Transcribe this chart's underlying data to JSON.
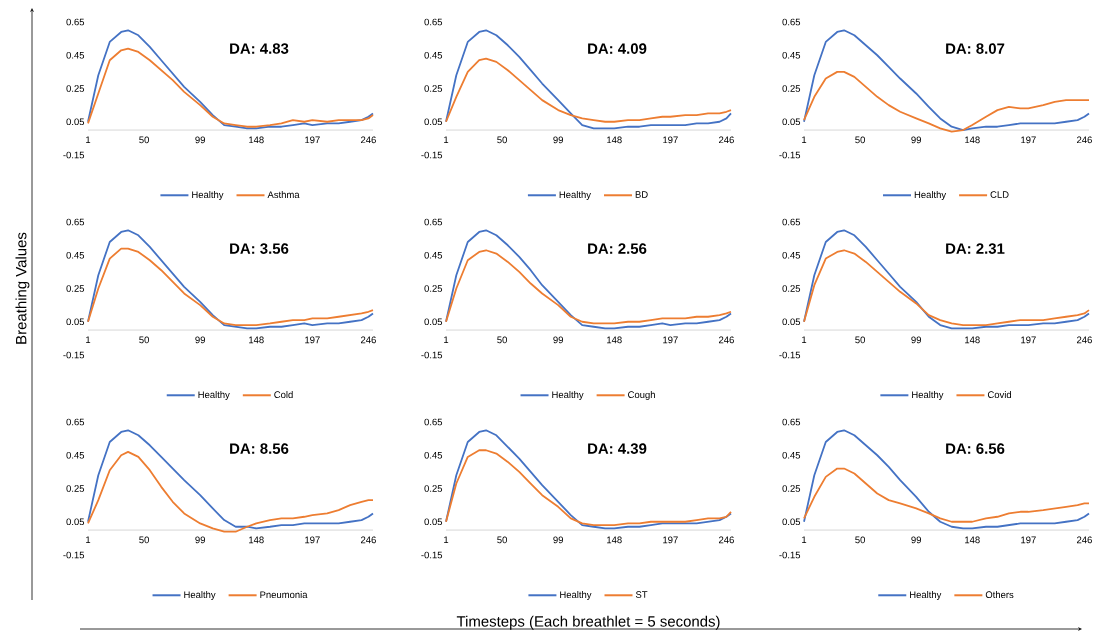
{
  "chart_data": [
    {
      "type": "line",
      "x": [
        1,
        10,
        20,
        30,
        36,
        45,
        55,
        65,
        75,
        85,
        99,
        110,
        120,
        130,
        140,
        148,
        160,
        170,
        180,
        190,
        197,
        210,
        220,
        230,
        240,
        246,
        250
      ],
      "xlim": [
        1,
        250
      ],
      "xticks": [
        1,
        50,
        99,
        148,
        197,
        246
      ],
      "ylim": [
        -0.15,
        0.65
      ],
      "yticks": [
        -0.15,
        0.05,
        0.25,
        0.45,
        0.65
      ],
      "legend": "bottom",
      "annotations": [
        "DA: 4.83"
      ],
      "series": [
        {
          "name": "Healthy",
          "color": "#4472c4",
          "values": [
            0.05,
            0.33,
            0.53,
            0.59,
            0.6,
            0.57,
            0.5,
            0.42,
            0.34,
            0.26,
            0.17,
            0.09,
            0.03,
            0.02,
            0.01,
            0.01,
            0.02,
            0.02,
            0.03,
            0.04,
            0.03,
            0.04,
            0.04,
            0.05,
            0.06,
            0.08,
            0.1
          ]
        },
        {
          "name": "Asthma",
          "color": "#ed7d31",
          "values": [
            0.04,
            0.22,
            0.42,
            0.48,
            0.49,
            0.47,
            0.42,
            0.36,
            0.3,
            0.23,
            0.15,
            0.08,
            0.04,
            0.03,
            0.02,
            0.02,
            0.03,
            0.04,
            0.06,
            0.05,
            0.06,
            0.05,
            0.06,
            0.06,
            0.06,
            0.07,
            0.09
          ]
        }
      ]
    },
    {
      "type": "line",
      "x": [
        1,
        10,
        20,
        30,
        36,
        45,
        55,
        65,
        75,
        85,
        99,
        110,
        120,
        130,
        140,
        148,
        160,
        170,
        180,
        190,
        197,
        210,
        220,
        230,
        240,
        246,
        250
      ],
      "xlim": [
        1,
        250
      ],
      "xticks": [
        1,
        50,
        99,
        148,
        197,
        246
      ],
      "ylim": [
        -0.15,
        0.65
      ],
      "yticks": [
        -0.15,
        0.05,
        0.25,
        0.45,
        0.65
      ],
      "legend": "bottom",
      "annotations": [
        "DA: 4.09"
      ],
      "series": [
        {
          "name": "Healthy",
          "color": "#4472c4",
          "values": [
            0.05,
            0.33,
            0.53,
            0.59,
            0.6,
            0.57,
            0.51,
            0.44,
            0.36,
            0.28,
            0.18,
            0.1,
            0.03,
            0.01,
            0.01,
            0.01,
            0.02,
            0.02,
            0.03,
            0.03,
            0.03,
            0.03,
            0.04,
            0.04,
            0.05,
            0.07,
            0.1
          ]
        },
        {
          "name": "BD",
          "color": "#ed7d31",
          "values": [
            0.05,
            0.2,
            0.35,
            0.42,
            0.43,
            0.41,
            0.36,
            0.3,
            0.24,
            0.18,
            0.12,
            0.09,
            0.07,
            0.06,
            0.05,
            0.05,
            0.06,
            0.06,
            0.07,
            0.08,
            0.08,
            0.09,
            0.09,
            0.1,
            0.1,
            0.11,
            0.12
          ]
        }
      ]
    },
    {
      "type": "line",
      "x": [
        1,
        10,
        20,
        30,
        36,
        45,
        55,
        65,
        75,
        85,
        99,
        110,
        120,
        130,
        140,
        148,
        160,
        170,
        180,
        190,
        197,
        210,
        220,
        230,
        240,
        246,
        250
      ],
      "xlim": [
        1,
        250
      ],
      "xticks": [
        1,
        50,
        99,
        148,
        197,
        246
      ],
      "ylim": [
        -0.15,
        0.65
      ],
      "yticks": [
        -0.15,
        0.05,
        0.25,
        0.45,
        0.65
      ],
      "legend": "bottom",
      "annotations": [
        "DA: 8.07"
      ],
      "series": [
        {
          "name": "Healthy",
          "color": "#4472c4",
          "values": [
            0.05,
            0.33,
            0.53,
            0.59,
            0.6,
            0.57,
            0.51,
            0.45,
            0.38,
            0.31,
            0.22,
            0.14,
            0.07,
            0.02,
            0.0,
            0.01,
            0.02,
            0.02,
            0.03,
            0.04,
            0.04,
            0.04,
            0.04,
            0.05,
            0.06,
            0.08,
            0.1
          ]
        },
        {
          "name": "CLD",
          "color": "#ed7d31",
          "values": [
            0.06,
            0.2,
            0.31,
            0.35,
            0.35,
            0.32,
            0.26,
            0.2,
            0.15,
            0.11,
            0.07,
            0.04,
            0.01,
            -0.01,
            0.0,
            0.03,
            0.08,
            0.12,
            0.14,
            0.13,
            0.13,
            0.15,
            0.17,
            0.18,
            0.18,
            0.18,
            0.18
          ]
        }
      ]
    },
    {
      "type": "line",
      "x": [
        1,
        10,
        20,
        30,
        36,
        45,
        55,
        65,
        75,
        85,
        99,
        110,
        120,
        130,
        140,
        148,
        160,
        170,
        180,
        190,
        197,
        210,
        220,
        230,
        240,
        246,
        250
      ],
      "xlim": [
        1,
        250
      ],
      "xticks": [
        1,
        50,
        99,
        148,
        197,
        246
      ],
      "ylim": [
        -0.15,
        0.65
      ],
      "yticks": [
        -0.15,
        0.05,
        0.25,
        0.45,
        0.65
      ],
      "legend": "bottom",
      "annotations": [
        "DA: 3.56"
      ],
      "ylabel": "Breathing Values",
      "series": [
        {
          "name": "Healthy",
          "color": "#4472c4",
          "values": [
            0.05,
            0.33,
            0.53,
            0.59,
            0.6,
            0.57,
            0.5,
            0.42,
            0.34,
            0.26,
            0.17,
            0.09,
            0.03,
            0.02,
            0.01,
            0.01,
            0.02,
            0.02,
            0.03,
            0.04,
            0.03,
            0.04,
            0.04,
            0.05,
            0.06,
            0.08,
            0.1
          ]
        },
        {
          "name": "Cold",
          "color": "#ed7d31",
          "values": [
            0.05,
            0.25,
            0.43,
            0.49,
            0.49,
            0.47,
            0.42,
            0.36,
            0.29,
            0.22,
            0.15,
            0.08,
            0.04,
            0.03,
            0.03,
            0.03,
            0.04,
            0.05,
            0.06,
            0.06,
            0.07,
            0.07,
            0.08,
            0.09,
            0.1,
            0.11,
            0.12
          ]
        }
      ]
    },
    {
      "type": "line",
      "x": [
        1,
        10,
        20,
        30,
        36,
        45,
        55,
        65,
        75,
        85,
        99,
        110,
        120,
        130,
        140,
        148,
        160,
        170,
        180,
        190,
        197,
        210,
        220,
        230,
        240,
        246,
        250
      ],
      "xlim": [
        1,
        250
      ],
      "xticks": [
        1,
        50,
        99,
        148,
        197,
        246
      ],
      "ylim": [
        -0.15,
        0.65
      ],
      "yticks": [
        -0.15,
        0.05,
        0.25,
        0.45,
        0.65
      ],
      "legend": "bottom",
      "annotations": [
        "DA: 2.56"
      ],
      "series": [
        {
          "name": "Healthy",
          "color": "#4472c4",
          "values": [
            0.05,
            0.33,
            0.53,
            0.59,
            0.6,
            0.57,
            0.51,
            0.44,
            0.36,
            0.27,
            0.17,
            0.09,
            0.03,
            0.02,
            0.01,
            0.01,
            0.02,
            0.02,
            0.03,
            0.04,
            0.03,
            0.04,
            0.04,
            0.05,
            0.06,
            0.08,
            0.1
          ]
        },
        {
          "name": "Cough",
          "color": "#ed7d31",
          "values": [
            0.05,
            0.25,
            0.42,
            0.47,
            0.48,
            0.46,
            0.41,
            0.35,
            0.28,
            0.22,
            0.15,
            0.08,
            0.05,
            0.04,
            0.04,
            0.04,
            0.05,
            0.05,
            0.06,
            0.07,
            0.07,
            0.07,
            0.08,
            0.08,
            0.09,
            0.1,
            0.11
          ]
        }
      ]
    },
    {
      "type": "line",
      "x": [
        1,
        10,
        20,
        30,
        36,
        45,
        55,
        65,
        75,
        85,
        99,
        110,
        120,
        130,
        140,
        148,
        160,
        170,
        180,
        190,
        197,
        210,
        220,
        230,
        240,
        246,
        250
      ],
      "xlim": [
        1,
        250
      ],
      "xticks": [
        1,
        50,
        99,
        148,
        197,
        246
      ],
      "ylim": [
        -0.15,
        0.65
      ],
      "yticks": [
        -0.15,
        0.05,
        0.25,
        0.45,
        0.65
      ],
      "legend": "bottom",
      "annotations": [
        "DA: 2.31"
      ],
      "series": [
        {
          "name": "Healthy",
          "color": "#4472c4",
          "values": [
            0.05,
            0.33,
            0.53,
            0.59,
            0.6,
            0.57,
            0.5,
            0.42,
            0.34,
            0.26,
            0.17,
            0.08,
            0.03,
            0.01,
            0.01,
            0.01,
            0.02,
            0.02,
            0.03,
            0.03,
            0.03,
            0.04,
            0.04,
            0.05,
            0.06,
            0.08,
            0.1
          ]
        },
        {
          "name": "Covid",
          "color": "#ed7d31",
          "values": [
            0.05,
            0.27,
            0.43,
            0.47,
            0.48,
            0.46,
            0.41,
            0.35,
            0.29,
            0.23,
            0.16,
            0.09,
            0.06,
            0.04,
            0.03,
            0.03,
            0.03,
            0.04,
            0.05,
            0.06,
            0.06,
            0.06,
            0.07,
            0.08,
            0.09,
            0.1,
            0.12
          ]
        }
      ]
    },
    {
      "type": "line",
      "x": [
        1,
        10,
        20,
        30,
        36,
        45,
        55,
        65,
        75,
        85,
        99,
        110,
        120,
        130,
        140,
        148,
        160,
        170,
        180,
        190,
        197,
        210,
        220,
        230,
        240,
        246,
        250
      ],
      "xlim": [
        1,
        250
      ],
      "xticks": [
        1,
        50,
        99,
        148,
        197,
        246
      ],
      "ylim": [
        -0.15,
        0.65
      ],
      "yticks": [
        -0.15,
        0.05,
        0.25,
        0.45,
        0.65
      ],
      "legend": "bottom",
      "annotations": [
        "DA: 8.56"
      ],
      "series": [
        {
          "name": "Healthy",
          "color": "#4472c4",
          "values": [
            0.05,
            0.33,
            0.53,
            0.59,
            0.6,
            0.57,
            0.51,
            0.44,
            0.37,
            0.3,
            0.21,
            0.13,
            0.06,
            0.02,
            0.02,
            0.01,
            0.02,
            0.03,
            0.03,
            0.04,
            0.04,
            0.04,
            0.04,
            0.05,
            0.06,
            0.08,
            0.1
          ]
        },
        {
          "name": "Pneumonia",
          "color": "#ed7d31",
          "values": [
            0.04,
            0.18,
            0.36,
            0.45,
            0.47,
            0.44,
            0.36,
            0.26,
            0.17,
            0.1,
            0.04,
            0.01,
            -0.01,
            -0.01,
            0.02,
            0.04,
            0.06,
            0.07,
            0.07,
            0.08,
            0.09,
            0.1,
            0.12,
            0.15,
            0.17,
            0.18,
            0.18
          ]
        }
      ]
    },
    {
      "type": "line",
      "x": [
        1,
        10,
        20,
        30,
        36,
        45,
        55,
        65,
        75,
        85,
        99,
        110,
        120,
        130,
        140,
        148,
        160,
        170,
        180,
        190,
        197,
        210,
        220,
        230,
        240,
        246,
        250
      ],
      "xlim": [
        1,
        250
      ],
      "xticks": [
        1,
        50,
        99,
        148,
        197,
        246
      ],
      "ylim": [
        -0.15,
        0.65
      ],
      "yticks": [
        -0.15,
        0.05,
        0.25,
        0.45,
        0.65
      ],
      "legend": "bottom",
      "annotations": [
        "DA: 4.39"
      ],
      "xlabel": "Timesteps (Each breathlet =  5 seconds)",
      "series": [
        {
          "name": "Healthy",
          "color": "#4472c4",
          "values": [
            0.05,
            0.33,
            0.53,
            0.59,
            0.6,
            0.57,
            0.5,
            0.43,
            0.35,
            0.27,
            0.17,
            0.09,
            0.03,
            0.02,
            0.01,
            0.01,
            0.02,
            0.02,
            0.03,
            0.04,
            0.04,
            0.04,
            0.04,
            0.05,
            0.06,
            0.08,
            0.1
          ]
        },
        {
          "name": "ST",
          "color": "#ed7d31",
          "values": [
            0.05,
            0.28,
            0.44,
            0.48,
            0.48,
            0.46,
            0.41,
            0.35,
            0.28,
            0.21,
            0.14,
            0.07,
            0.04,
            0.03,
            0.03,
            0.03,
            0.04,
            0.04,
            0.05,
            0.05,
            0.05,
            0.05,
            0.06,
            0.07,
            0.07,
            0.08,
            0.11
          ]
        }
      ]
    },
    {
      "type": "line",
      "x": [
        1,
        10,
        20,
        30,
        36,
        45,
        55,
        65,
        75,
        85,
        99,
        110,
        120,
        130,
        140,
        148,
        160,
        170,
        180,
        190,
        197,
        210,
        220,
        230,
        240,
        246,
        250
      ],
      "xlim": [
        1,
        250
      ],
      "xticks": [
        1,
        50,
        99,
        148,
        197,
        246
      ],
      "ylim": [
        -0.15,
        0.65
      ],
      "yticks": [
        -0.15,
        0.05,
        0.25,
        0.45,
        0.65
      ],
      "legend": "bottom",
      "annotations": [
        "DA: 6.56"
      ],
      "series": [
        {
          "name": "Healthy",
          "color": "#4472c4",
          "values": [
            0.05,
            0.33,
            0.53,
            0.59,
            0.6,
            0.57,
            0.51,
            0.45,
            0.38,
            0.3,
            0.2,
            0.11,
            0.05,
            0.02,
            0.01,
            0.01,
            0.02,
            0.02,
            0.03,
            0.04,
            0.04,
            0.04,
            0.04,
            0.05,
            0.06,
            0.08,
            0.1
          ]
        },
        {
          "name": "Others",
          "color": "#ed7d31",
          "values": [
            0.07,
            0.2,
            0.32,
            0.37,
            0.37,
            0.34,
            0.28,
            0.22,
            0.18,
            0.16,
            0.13,
            0.1,
            0.07,
            0.05,
            0.05,
            0.05,
            0.07,
            0.08,
            0.1,
            0.11,
            0.11,
            0.12,
            0.13,
            0.14,
            0.15,
            0.16,
            0.16
          ]
        }
      ]
    }
  ]
}
